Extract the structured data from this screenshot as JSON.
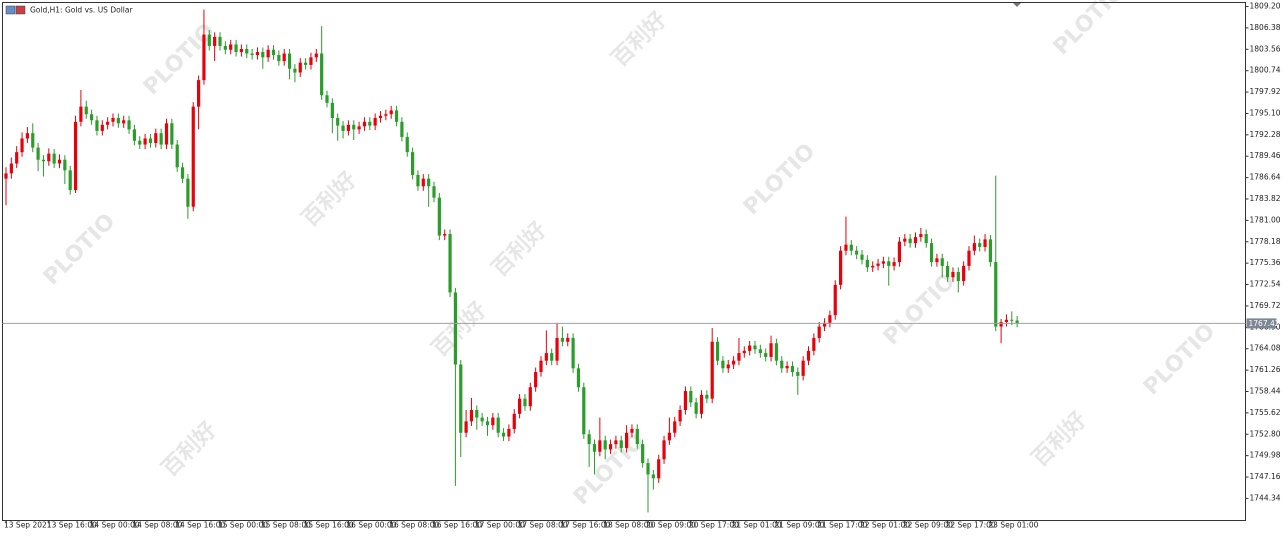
{
  "chart_data": {
    "type": "candlestick",
    "title": "Gold,H1:  Gold vs. US Dollar",
    "watermark": [
      "PLOTIO",
      "百利好"
    ],
    "up_color": "#e8000b",
    "down_color": "#2a9d2a",
    "price_line_color": "#a0a0a0",
    "price_box_color": "#7d8794",
    "current_price": 1767.42,
    "ylim": [
      1741.43,
      1809.73
    ],
    "yticks": [
      {
        "value": 1809.2,
        "label": "1809.20"
      },
      1806.38,
      1803.56,
      1800.74,
      1797.92,
      {
        "value": 1795.1,
        "label": "1795.10"
      },
      1792.28,
      1789.46,
      1786.64,
      1783.82,
      {
        "value": 1781,
        "label": "1781.00"
      },
      1778.18,
      1775.36,
      1772.54,
      1769.72,
      {
        "value": 1766.9,
        "label": "1766.90"
      },
      1764.08,
      1761.26,
      1758.44,
      1755.62,
      {
        "value": 1752.8,
        "label": "1752.80"
      },
      1749.98,
      1747.16,
      1744.34
    ],
    "categories": [
      "13 Sep 2021",
      null,
      null,
      null,
      null,
      null,
      null,
      null,
      "13 Sep 16:00",
      null,
      null,
      null,
      null,
      null,
      null,
      null,
      "14 Sep 00:00",
      null,
      null,
      null,
      null,
      null,
      null,
      null,
      "14 Sep 08:00",
      null,
      null,
      null,
      null,
      null,
      null,
      null,
      "14 Sep 16:00",
      null,
      null,
      null,
      null,
      null,
      null,
      null,
      "15 Sep 00:00",
      null,
      null,
      null,
      null,
      null,
      null,
      null,
      "15 Sep 08:00",
      null,
      null,
      null,
      null,
      null,
      null,
      null,
      "15 Sep 16:00",
      null,
      null,
      null,
      null,
      null,
      null,
      null,
      "16 Sep 00:00",
      null,
      null,
      null,
      null,
      null,
      null,
      null,
      "16 Sep 08:00",
      null,
      null,
      null,
      null,
      null,
      null,
      null,
      "16 Sep 16:00",
      null,
      null,
      null,
      null,
      null,
      null,
      null,
      "17 Sep 00:00",
      null,
      null,
      null,
      null,
      null,
      null,
      null,
      "17 Sep 08:00",
      null,
      null,
      null,
      null,
      null,
      null,
      null,
      "17 Sep 16:00",
      null,
      null,
      null,
      null,
      null,
      null,
      null,
      "18 Sep 08:00",
      null,
      null,
      null,
      null,
      null,
      null,
      null,
      "20 Sep 09:00",
      null,
      null,
      null,
      null,
      null,
      null,
      null,
      "20 Sep 17:00",
      null,
      null,
      null,
      null,
      null,
      null,
      null,
      "21 Sep 01:00",
      null,
      null,
      null,
      null,
      null,
      null,
      null,
      "21 Sep 09:00",
      null,
      null,
      null,
      null,
      null,
      null,
      null,
      "21 Sep 17:00",
      null,
      null,
      null,
      null,
      null,
      null,
      null,
      "22 Sep 01:00",
      null,
      null,
      null,
      null,
      null,
      null,
      null,
      "22 Sep 09:00",
      null,
      null,
      null,
      null,
      null,
      null,
      null,
      "22 Sep 17:00",
      null,
      null,
      null,
      null,
      null,
      null,
      null,
      "23 Sep 01:00",
      null,
      null,
      null,
      null,
      null
    ],
    "ohlc": [
      [
        1786.5,
        1788.0,
        1783.0,
        1787.2
      ],
      [
        1787.2,
        1789.3,
        1786.5,
        1788.5
      ],
      [
        1788.5,
        1790.8,
        1787.9,
        1790.0
      ],
      [
        1790.0,
        1792.6,
        1789.4,
        1791.8
      ],
      [
        1791.8,
        1793.3,
        1791.2,
        1792.5
      ],
      [
        1792.5,
        1793.8,
        1790.0,
        1790.6
      ],
      [
        1790.6,
        1791.2,
        1787.5,
        1789.0
      ],
      [
        1789.0,
        1789.6,
        1786.8,
        1788.8
      ],
      [
        1788.8,
        1790.5,
        1788.2,
        1789.8
      ],
      [
        1789.8,
        1790.4,
        1787.9,
        1788.5
      ],
      [
        1788.5,
        1789.7,
        1787.9,
        1789.0
      ],
      [
        1789.0,
        1789.6,
        1785.8,
        1787.6
      ],
      [
        1787.6,
        1788.2,
        1784.4,
        1785.0
      ],
      [
        1785.0,
        1794.8,
        1784.6,
        1794.0
      ],
      [
        1794.0,
        1798.2,
        1793.4,
        1796.0
      ],
      [
        1796.0,
        1796.8,
        1794.4,
        1795.0
      ],
      [
        1795.0,
        1795.6,
        1793.6,
        1794.2
      ],
      [
        1794.2,
        1794.8,
        1792.2,
        1792.8
      ],
      [
        1792.8,
        1794.2,
        1792.2,
        1793.6
      ],
      [
        1793.6,
        1794.6,
        1793.0,
        1794.0
      ],
      [
        1794.0,
        1795.1,
        1793.4,
        1794.5
      ],
      [
        1794.5,
        1795.1,
        1793.2,
        1793.8
      ],
      [
        1793.8,
        1794.8,
        1793.2,
        1794.2
      ],
      [
        1794.2,
        1794.8,
        1792.4,
        1793.0
      ],
      [
        1793.0,
        1793.6,
        1790.9,
        1791.5
      ],
      [
        1791.5,
        1792.1,
        1790.4,
        1791.0
      ],
      [
        1791.0,
        1792.4,
        1790.4,
        1791.8
      ],
      [
        1791.8,
        1792.4,
        1790.6,
        1791.2
      ],
      [
        1791.2,
        1793.1,
        1790.6,
        1792.5
      ],
      [
        1792.5,
        1793.1,
        1790.4,
        1791.0
      ],
      [
        1791.0,
        1794.4,
        1790.4,
        1793.8
      ],
      [
        1793.8,
        1794.4,
        1790.4,
        1791.0
      ],
      [
        1791.0,
        1791.6,
        1787.4,
        1788.0
      ],
      [
        1788.0,
        1788.6,
        1785.9,
        1786.5
      ],
      [
        1786.5,
        1787.1,
        1781.2,
        1782.8
      ],
      [
        1782.8,
        1796.6,
        1782.2,
        1796.0
      ],
      [
        1796.0,
        1800.1,
        1793.0,
        1799.5
      ],
      [
        1799.5,
        1808.8,
        1798.9,
        1805.5
      ],
      [
        1805.5,
        1806.1,
        1803.4,
        1804.0
      ],
      [
        1804.0,
        1805.8,
        1802.0,
        1805.2
      ],
      [
        1805.2,
        1805.8,
        1803.4,
        1804.0
      ],
      [
        1804.0,
        1804.6,
        1802.9,
        1803.5
      ],
      [
        1803.5,
        1804.8,
        1802.9,
        1804.2
      ],
      [
        1804.2,
        1804.8,
        1802.6,
        1803.2
      ],
      [
        1803.2,
        1804.2,
        1802.6,
        1803.6
      ],
      [
        1803.6,
        1804.2,
        1802.4,
        1803.0
      ],
      [
        1803.0,
        1803.6,
        1802.2,
        1802.8
      ],
      [
        1802.8,
        1803.8,
        1802.2,
        1803.2
      ],
      [
        1803.2,
        1803.8,
        1801.0,
        1802.5
      ],
      [
        1802.5,
        1804.1,
        1801.9,
        1803.5
      ],
      [
        1803.5,
        1804.1,
        1802.2,
        1802.8
      ],
      [
        1802.8,
        1803.4,
        1801.4,
        1802.0
      ],
      [
        1802.0,
        1803.6,
        1801.4,
        1803.0
      ],
      [
        1803.0,
        1803.6,
        1799.6,
        1801.0
      ],
      [
        1801.0,
        1801.6,
        1799.2,
        1800.5
      ],
      [
        1800.5,
        1802.4,
        1799.9,
        1801.8
      ],
      [
        1801.8,
        1802.4,
        1800.9,
        1801.5
      ],
      [
        1801.5,
        1803.1,
        1800.9,
        1802.5
      ],
      [
        1802.5,
        1803.6,
        1801.9,
        1803.0
      ],
      [
        1803.0,
        1806.6,
        1796.9,
        1797.5
      ],
      [
        1797.5,
        1798.1,
        1795.9,
        1796.5
      ],
      [
        1796.5,
        1797.1,
        1792.5,
        1794.5
      ],
      [
        1794.5,
        1795.1,
        1791.5,
        1793.5
      ],
      [
        1793.5,
        1794.1,
        1791.8,
        1792.8
      ],
      [
        1792.8,
        1794.2,
        1792.2,
        1793.6
      ],
      [
        1793.6,
        1794.2,
        1791.6,
        1793.0
      ],
      [
        1793.0,
        1794.0,
        1792.4,
        1793.4
      ],
      [
        1793.4,
        1794.6,
        1792.8,
        1794.0
      ],
      [
        1794.0,
        1794.6,
        1792.9,
        1793.5
      ],
      [
        1793.5,
        1795.1,
        1792.9,
        1794.5
      ],
      [
        1794.5,
        1795.4,
        1793.9,
        1794.8
      ],
      [
        1794.8,
        1795.6,
        1794.2,
        1795.0
      ],
      [
        1795.0,
        1796.1,
        1794.4,
        1795.5
      ],
      [
        1795.5,
        1796.1,
        1793.4,
        1794.0
      ],
      [
        1794.0,
        1794.6,
        1791.4,
        1792.0
      ],
      [
        1792.0,
        1792.6,
        1789.4,
        1790.0
      ],
      [
        1790.0,
        1790.6,
        1786.4,
        1787.0
      ],
      [
        1787.0,
        1787.6,
        1784.9,
        1785.5
      ],
      [
        1785.5,
        1787.1,
        1784.9,
        1786.5
      ],
      [
        1786.5,
        1787.1,
        1782.8,
        1785.5
      ],
      [
        1785.5,
        1786.1,
        1783.4,
        1784.0
      ],
      [
        1784.0,
        1784.6,
        1778.4,
        1779.0
      ],
      [
        1779.0,
        1779.8,
        1778.4,
        1779.2
      ],
      [
        1779.2,
        1779.8,
        1770.9,
        1771.5
      ],
      [
        1771.5,
        1772.1,
        1746.0,
        1762.0
      ],
      [
        1762.0,
        1762.6,
        1749.8,
        1753.0
      ],
      [
        1753.0,
        1756.0,
        1752.4,
        1754.5
      ],
      [
        1754.5,
        1757.6,
        1753.9,
        1756.0
      ],
      [
        1756.0,
        1756.6,
        1753.4,
        1755.0
      ],
      [
        1755.0,
        1755.6,
        1753.9,
        1754.5
      ],
      [
        1754.5,
        1755.1,
        1752.6,
        1754.0
      ],
      [
        1754.0,
        1755.6,
        1753.4,
        1755.0
      ],
      [
        1755.0,
        1755.6,
        1752.4,
        1753.0
      ],
      [
        1753.0,
        1753.6,
        1751.9,
        1752.5
      ],
      [
        1752.5,
        1754.1,
        1751.9,
        1753.5
      ],
      [
        1753.5,
        1756.1,
        1752.9,
        1755.5
      ],
      [
        1755.5,
        1758.1,
        1754.9,
        1757.5
      ],
      [
        1757.5,
        1758.1,
        1755.9,
        1756.5
      ],
      [
        1756.5,
        1759.6,
        1755.9,
        1759.0
      ],
      [
        1759.0,
        1761.6,
        1758.4,
        1761.0
      ],
      [
        1761.0,
        1763.1,
        1760.4,
        1762.5
      ],
      [
        1762.5,
        1766.5,
        1761.9,
        1763.5
      ],
      [
        1763.5,
        1764.1,
        1761.9,
        1762.5
      ],
      [
        1762.5,
        1767.5,
        1761.9,
        1765.5
      ],
      [
        1765.5,
        1767.0,
        1764.4,
        1765.0
      ],
      [
        1765.0,
        1766.1,
        1764.4,
        1765.5
      ],
      [
        1765.5,
        1766.1,
        1760.9,
        1761.5
      ],
      [
        1761.5,
        1762.1,
        1758.4,
        1759.0
      ],
      [
        1759.0,
        1759.6,
        1752.2,
        1752.8
      ],
      [
        1752.8,
        1753.4,
        1748.5,
        1751.5
      ],
      [
        1751.5,
        1752.1,
        1747.5,
        1750.5
      ],
      [
        1750.5,
        1755.0,
        1749.9,
        1752.0
      ],
      [
        1752.0,
        1752.6,
        1749.5,
        1750.8
      ],
      [
        1750.8,
        1752.1,
        1750.2,
        1751.5
      ],
      [
        1751.5,
        1752.6,
        1750.9,
        1752.0
      ],
      [
        1752.0,
        1752.6,
        1750.4,
        1751.0
      ],
      [
        1751.0,
        1754.0,
        1750.4,
        1753.0
      ],
      [
        1753.0,
        1754.1,
        1752.4,
        1753.5
      ],
      [
        1753.5,
        1754.1,
        1750.9,
        1751.5
      ],
      [
        1751.5,
        1752.1,
        1748.4,
        1749.0
      ],
      [
        1749.0,
        1749.6,
        1742.5,
        1747.5
      ],
      [
        1747.5,
        1748.1,
        1745.5,
        1747.0
      ],
      [
        1747.0,
        1750.1,
        1746.4,
        1749.5
      ],
      [
        1749.5,
        1752.6,
        1748.9,
        1752.0
      ],
      [
        1752.0,
        1755.0,
        1751.4,
        1753.0
      ],
      [
        1753.0,
        1755.1,
        1752.4,
        1754.5
      ],
      [
        1754.5,
        1756.6,
        1753.9,
        1756.0
      ],
      [
        1756.0,
        1759.1,
        1755.4,
        1758.5
      ],
      [
        1758.5,
        1759.1,
        1756.4,
        1757.0
      ],
      [
        1757.0,
        1757.6,
        1754.9,
        1755.5
      ],
      [
        1755.5,
        1758.6,
        1754.9,
        1758.0
      ],
      [
        1758.0,
        1758.6,
        1756.9,
        1757.5
      ],
      [
        1757.5,
        1766.8,
        1756.9,
        1765.0
      ],
      [
        1765.0,
        1765.6,
        1761.9,
        1762.5
      ],
      [
        1762.5,
        1763.1,
        1760.9,
        1761.5
      ],
      [
        1761.5,
        1762.6,
        1760.9,
        1762.0
      ],
      [
        1762.0,
        1763.1,
        1761.4,
        1762.5
      ],
      [
        1762.5,
        1765.5,
        1761.9,
        1763.5
      ],
      [
        1763.5,
        1764.4,
        1762.9,
        1763.8
      ],
      [
        1763.8,
        1765.1,
        1763.2,
        1764.5
      ],
      [
        1764.5,
        1765.1,
        1763.4,
        1764.0
      ],
      [
        1764.0,
        1764.6,
        1762.9,
        1763.5
      ],
      [
        1763.5,
        1764.1,
        1762.4,
        1763.0
      ],
      [
        1763.0,
        1765.8,
        1762.4,
        1764.8
      ],
      [
        1764.8,
        1765.4,
        1761.9,
        1762.5
      ],
      [
        1762.5,
        1763.1,
        1760.9,
        1761.5
      ],
      [
        1761.5,
        1762.4,
        1760.9,
        1761.8
      ],
      [
        1761.8,
        1762.4,
        1760.4,
        1761.0
      ],
      [
        1761.0,
        1761.6,
        1758.0,
        1760.5
      ],
      [
        1760.5,
        1763.1,
        1759.9,
        1762.5
      ],
      [
        1762.5,
        1764.4,
        1761.9,
        1763.8
      ],
      [
        1763.8,
        1766.1,
        1763.2,
        1765.5
      ],
      [
        1765.5,
        1767.6,
        1764.9,
        1767.0
      ],
      [
        1767.0,
        1768.1,
        1766.4,
        1767.5
      ],
      [
        1767.5,
        1769.1,
        1766.9,
        1768.5
      ],
      [
        1768.5,
        1773.1,
        1767.9,
        1772.5
      ],
      [
        1772.5,
        1777.6,
        1771.9,
        1777.0
      ],
      [
        1777.0,
        1781.5,
        1776.4,
        1777.8
      ],
      [
        1777.8,
        1778.4,
        1776.4,
        1777.0
      ],
      [
        1777.0,
        1777.6,
        1775.9,
        1776.5
      ],
      [
        1776.5,
        1777.1,
        1775.2,
        1775.8
      ],
      [
        1775.8,
        1776.4,
        1774.2,
        1774.8
      ],
      [
        1774.8,
        1775.6,
        1774.2,
        1775.0
      ],
      [
        1775.0,
        1775.9,
        1774.4,
        1775.3
      ],
      [
        1775.3,
        1776.2,
        1774.7,
        1775.6
      ],
      [
        1775.6,
        1776.2,
        1772.4,
        1775.0
      ],
      [
        1775.0,
        1776.1,
        1774.4,
        1775.5
      ],
      [
        1775.5,
        1778.8,
        1774.9,
        1778.2
      ],
      [
        1778.2,
        1779.2,
        1777.6,
        1778.6
      ],
      [
        1778.6,
        1779.2,
        1777.4,
        1778.0
      ],
      [
        1778.0,
        1779.4,
        1777.4,
        1778.8
      ],
      [
        1778.8,
        1780.0,
        1778.2,
        1779.2
      ],
      [
        1779.2,
        1779.8,
        1777.4,
        1778.0
      ],
      [
        1778.0,
        1778.6,
        1774.9,
        1775.5
      ],
      [
        1775.5,
        1776.6,
        1774.9,
        1776.0
      ],
      [
        1776.0,
        1776.6,
        1773.5,
        1775.0
      ],
      [
        1775.0,
        1775.6,
        1772.9,
        1773.5
      ],
      [
        1773.5,
        1774.8,
        1772.9,
        1774.2
      ],
      [
        1774.2,
        1774.8,
        1771.5,
        1773.0
      ],
      [
        1773.0,
        1775.6,
        1772.4,
        1775.0
      ],
      [
        1775.0,
        1777.6,
        1774.4,
        1777.0
      ],
      [
        1777.0,
        1779.0,
        1776.4,
        1778.0
      ],
      [
        1778.0,
        1778.6,
        1776.9,
        1777.5
      ],
      [
        1777.5,
        1779.2,
        1776.9,
        1778.5
      ],
      [
        1778.5,
        1779.1,
        1774.9,
        1775.5
      ],
      [
        1775.5,
        1786.9,
        1766.4,
        1767.0
      ],
      [
        1767.0,
        1768.0,
        1764.8,
        1767.6
      ],
      [
        1767.6,
        1768.6,
        1767.0,
        1767.9
      ],
      [
        1767.9,
        1769.0,
        1767.2,
        1767.8
      ],
      [
        1767.8,
        1768.4,
        1766.9,
        1767.42
      ]
    ]
  }
}
